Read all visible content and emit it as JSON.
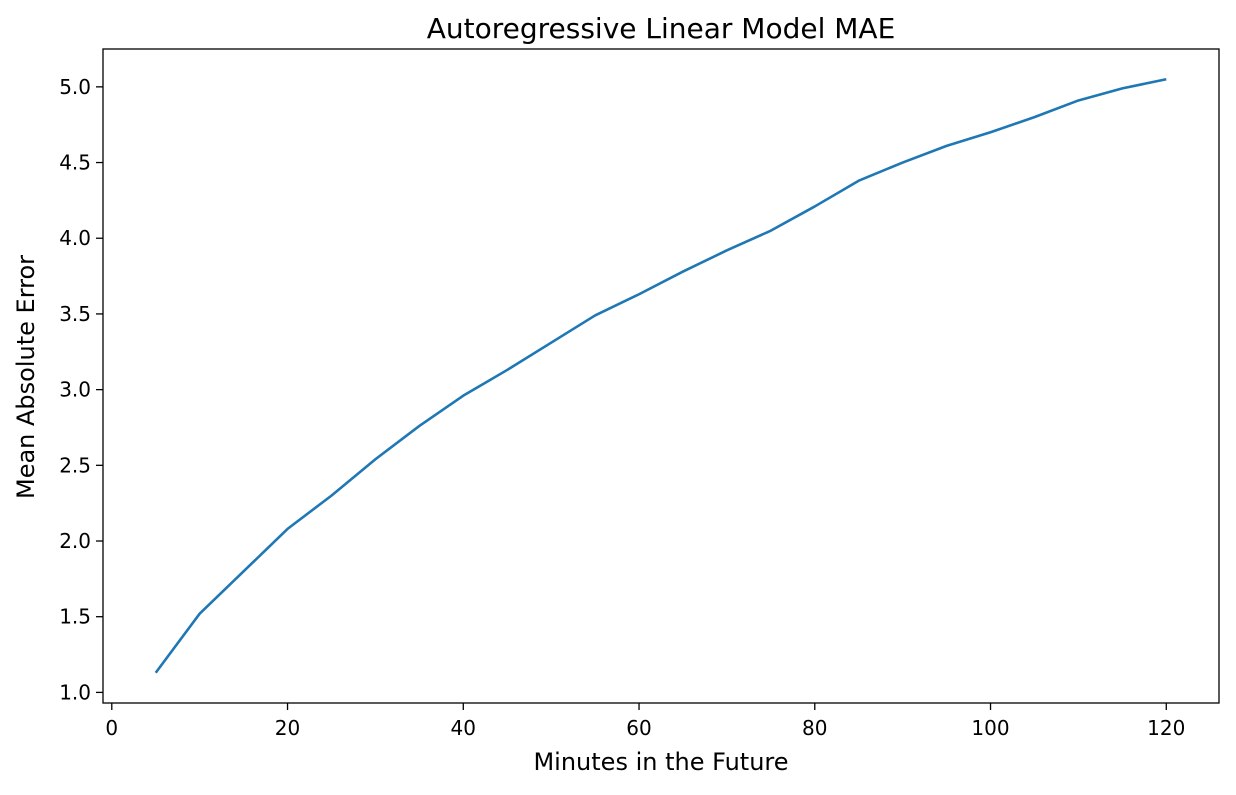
{
  "chart_data": {
    "type": "line",
    "title": "Autoregressive Linear Model MAE",
    "xlabel": "Minutes in the Future",
    "ylabel": "Mean Absolute Error",
    "xlim": [
      -1,
      126
    ],
    "ylim": [
      0.93,
      5.25
    ],
    "xticks": [
      0,
      20,
      40,
      60,
      80,
      100,
      120
    ],
    "xtick_labels": [
      "0",
      "20",
      "40",
      "60",
      "80",
      "100",
      "120"
    ],
    "yticks": [
      1.0,
      1.5,
      2.0,
      2.5,
      3.0,
      3.5,
      4.0,
      4.5,
      5.0
    ],
    "ytick_labels": [
      "1.0",
      "1.5",
      "2.0",
      "2.5",
      "3.0",
      "3.5",
      "4.0",
      "4.5",
      "5.0"
    ],
    "grid": false,
    "series": [
      {
        "color": "#1f77b4",
        "x": [
          5,
          10,
          15,
          20,
          25,
          30,
          35,
          40,
          45,
          50,
          55,
          60,
          65,
          70,
          75,
          80,
          85,
          90,
          95,
          100,
          105,
          110,
          115,
          120
        ],
        "y": [
          1.13,
          1.52,
          1.8,
          2.08,
          2.3,
          2.54,
          2.76,
          2.96,
          3.13,
          3.31,
          3.49,
          3.63,
          3.78,
          3.92,
          4.05,
          4.21,
          4.38,
          4.5,
          4.61,
          4.7,
          4.8,
          4.91,
          4.99,
          5.05
        ]
      }
    ]
  }
}
